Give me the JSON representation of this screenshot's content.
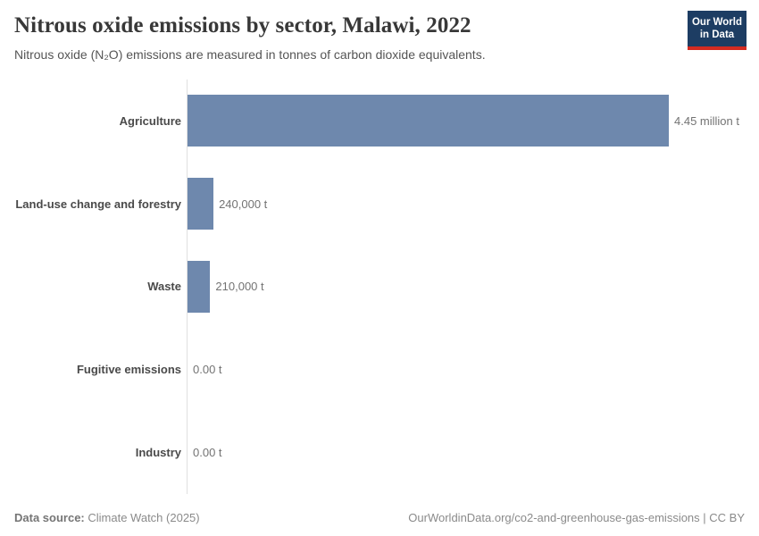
{
  "header": {
    "title": "Nitrous oxide emissions by sector, Malawi, 2022",
    "subtitle": "Nitrous oxide (N₂O) emissions are measured in tonnes of carbon dioxide equivalents.",
    "logo": {
      "line1": "Our World",
      "line2": "in Data"
    }
  },
  "chart_data": {
    "type": "bar",
    "orientation": "horizontal",
    "title": "Nitrous oxide emissions by sector, Malawi, 2022",
    "subtitle": "Nitrous oxide (N₂O) emissions are measured in tonnes of carbon dioxide equivalents.",
    "categories": [
      "Agriculture",
      "Land-use change and forestry",
      "Waste",
      "Fugitive emissions",
      "Industry"
    ],
    "values": [
      4450000,
      240000,
      210000,
      0,
      0
    ],
    "value_labels": [
      "4.45 million t",
      "240,000 t",
      "210,000 t",
      "0.00 t",
      "0.00 t"
    ],
    "unit": "tonnes of carbon dioxide equivalents",
    "xlim": [
      0,
      4450000
    ],
    "grid": false,
    "legend": false,
    "bar_color": "#6e88ad",
    "axis_color": "#e0e0e0"
  },
  "footer": {
    "source_label": "Data source:",
    "source_value": "Climate Watch (2025)",
    "rights": "OurWorldinData.org/co2-and-greenhouse-gas-emissions | CC BY"
  }
}
